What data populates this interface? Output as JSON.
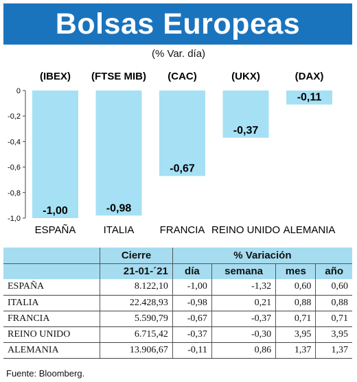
{
  "header": {
    "title": "Bolsas Europeas",
    "subtitle": "(% Var. día)"
  },
  "chart_data": {
    "type": "bar",
    "indices": [
      "(IBEX)",
      "(FTSE MIB)",
      "(CAC)",
      "(UKX)",
      "(DAX)"
    ],
    "categories": [
      "ESPAÑA",
      "ITALIA",
      "FRANCIA",
      "REINO UNIDO",
      "ALEMANIA"
    ],
    "values": [
      -1.0,
      -0.98,
      -0.67,
      -0.37,
      -0.11
    ],
    "value_labels": [
      "-1,00",
      "-0,98",
      "-0,67",
      "-0,37",
      "-0,11"
    ],
    "ylim": [
      -1.0,
      0
    ],
    "yticks": [
      0,
      -0.2,
      -0.4,
      -0.6,
      -0.8,
      -1.0
    ],
    "ytick_labels": [
      "0",
      "-0,2",
      "-0,4",
      "-0,6",
      "-0,8",
      "-1,0"
    ],
    "bar_color": "#a6e0f4",
    "grid": false
  },
  "table": {
    "group_headers": {
      "cierre": "Cierre",
      "variacion": "% Variación"
    },
    "sub_headers": {
      "date": "21-01-´21",
      "dia": "día",
      "semana": "semana",
      "mes": "mes",
      "anio": "año"
    },
    "rows": [
      {
        "country": "ESPAÑA",
        "cierre": "8.122,10",
        "dia": "-1,00",
        "semana": "-1,32",
        "mes": "0,60",
        "anio": "0,60"
      },
      {
        "country": "ITALIA",
        "cierre": "22.428,93",
        "dia": "-0,98",
        "semana": "0,21",
        "mes": "0,88",
        "anio": "0,88"
      },
      {
        "country": "FRANCIA",
        "cierre": "5.590,79",
        "dia": "-0,67",
        "semana": "-0,37",
        "mes": "0,71",
        "anio": "0,71"
      },
      {
        "country": "REINO UNIDO",
        "cierre": "6.715,42",
        "dia": "-0,37",
        "semana": "-0,30",
        "mes": "3,95",
        "anio": "3,95"
      },
      {
        "country": "ALEMANIA",
        "cierre": "13.906,67",
        "dia": "-0,11",
        "semana": "0,86",
        "mes": "1,37",
        "anio": "1,37"
      }
    ]
  },
  "footer": {
    "source": "Fuente: Bloomberg."
  },
  "colors": {
    "banner": "#1a74bd",
    "header_fill": "#a6dcf0",
    "bar": "#a6e0f4"
  }
}
